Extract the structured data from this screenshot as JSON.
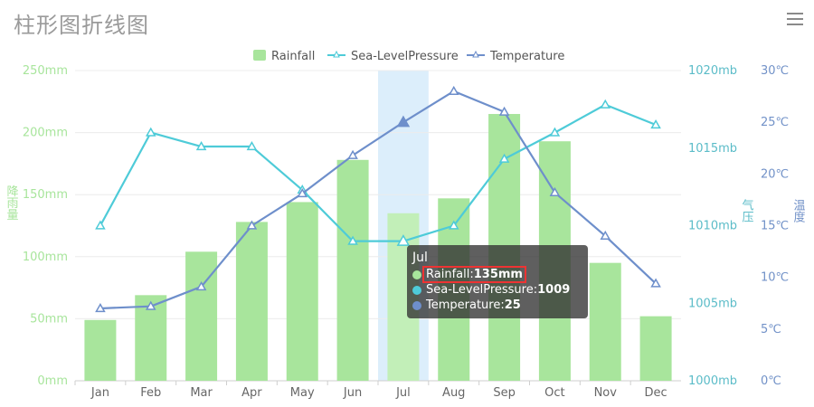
{
  "title": "柱形图折线图",
  "icons": {
    "menu": "hamburger-menu-icon"
  },
  "colors": {
    "rainfall": "#a8e59c",
    "rainfall_highlight": "#c2efb8",
    "pressure": "#4ecbd8",
    "temperature": "#6e8fcb",
    "axis_rain": "#a8e59c",
    "axis_pressure": "#5bbcc8",
    "axis_temp": "#7292c8",
    "highlight_band": "#dceefb"
  },
  "chart_data": {
    "type": "bar",
    "categories": [
      "Jan",
      "Feb",
      "Mar",
      "Apr",
      "May",
      "Jun",
      "Jul",
      "Aug",
      "Sep",
      "Oct",
      "Nov",
      "Dec"
    ],
    "series": [
      {
        "name": "Rainfall",
        "type": "bar",
        "axis": "rain",
        "values": [
          49,
          69,
          104,
          128,
          144,
          178,
          135,
          147,
          215,
          193,
          95,
          52
        ]
      },
      {
        "name": "Sea-LevelPressure",
        "type": "line",
        "axis": "pressure",
        "values": [
          1010,
          1016,
          1015.1,
          1015.1,
          1012.3,
          1009,
          1009,
          1010,
          1014.3,
          1016,
          1017.8,
          1016.5
        ]
      },
      {
        "name": "Temperature",
        "type": "line",
        "axis": "temp",
        "values": [
          7,
          7.2,
          9.1,
          15,
          18.1,
          21.8,
          25,
          28,
          26,
          18.2,
          14,
          9.4
        ]
      }
    ],
    "axes": {
      "rain": {
        "label": "降雨量",
        "min": 0,
        "max": 250,
        "ticks": [
          "0mm",
          "50mm",
          "100mm",
          "150mm",
          "200mm",
          "250mm"
        ]
      },
      "pressure": {
        "label": "气压",
        "min": 1000,
        "max": 1020,
        "ticks": [
          "1000mb",
          "1005mb",
          "1010mb",
          "1015mb",
          "1020mb"
        ]
      },
      "temp": {
        "label": "温度",
        "min": 0,
        "max": 30,
        "ticks": [
          "0℃",
          "5℃",
          "10℃",
          "15℃",
          "20℃",
          "25℃",
          "30℃"
        ]
      }
    },
    "legend": [
      {
        "name": "Rainfall"
      },
      {
        "name": "Sea-LevelPressure"
      },
      {
        "name": "Temperature"
      }
    ],
    "highlighted_category": "Jul"
  },
  "tooltip": {
    "title": "Jul",
    "rows": [
      {
        "name": "Rainfall",
        "value": "135mm",
        "highlighted": true
      },
      {
        "name": "Sea-LevelPressure",
        "value": "1009",
        "highlighted": false
      },
      {
        "name": "Temperature",
        "value": "25",
        "highlighted": false
      }
    ]
  }
}
